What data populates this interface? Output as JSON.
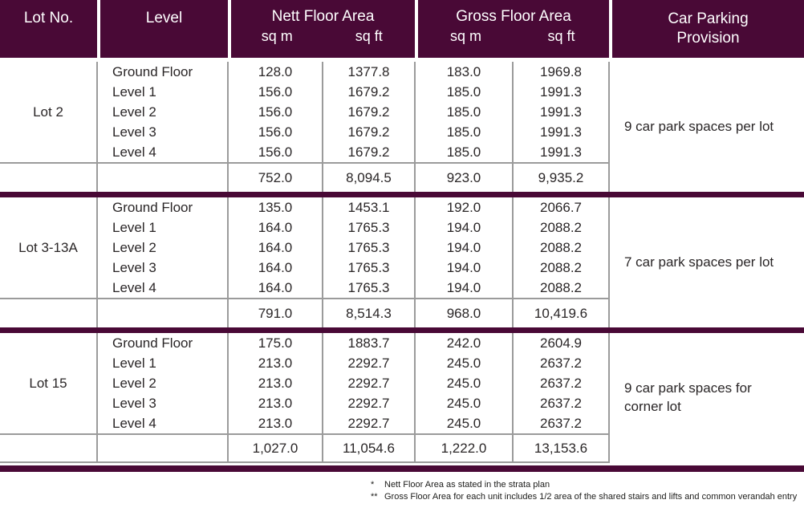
{
  "colors": {
    "header_bg": "#490936",
    "grid_line": "#9b9b9b",
    "text": "#2a2627"
  },
  "header": {
    "col_lot": "Lot No.",
    "col_level": "Level",
    "group_nett": "Nett Floor Area",
    "group_gross": "Gross Floor Area",
    "unit_sqm": "sq m",
    "unit_sqft": "sq ft",
    "col_parking_line1": "Car Parking",
    "col_parking_line2": "Provision"
  },
  "sections": [
    {
      "lot": "Lot 2",
      "parking": "9 car park spaces per lot",
      "rows": [
        {
          "level": "Ground Floor",
          "nett_sqm": "128.0",
          "nett_sqft": "1377.8",
          "gross_sqm": "183.0",
          "gross_sqft": "1969.8"
        },
        {
          "level": "Level 1",
          "nett_sqm": "156.0",
          "nett_sqft": "1679.2",
          "gross_sqm": "185.0",
          "gross_sqft": "1991.3"
        },
        {
          "level": "Level 2",
          "nett_sqm": "156.0",
          "nett_sqft": "1679.2",
          "gross_sqm": "185.0",
          "gross_sqft": "1991.3"
        },
        {
          "level": "Level 3",
          "nett_sqm": "156.0",
          "nett_sqft": "1679.2",
          "gross_sqm": "185.0",
          "gross_sqft": "1991.3"
        },
        {
          "level": "Level 4",
          "nett_sqm": "156.0",
          "nett_sqft": "1679.2",
          "gross_sqm": "185.0",
          "gross_sqft": "1991.3"
        }
      ],
      "totals": {
        "nett_sqm": "752.0",
        "nett_sqft": "8,094.5",
        "gross_sqm": "923.0",
        "gross_sqft": "9,935.2"
      }
    },
    {
      "lot": "Lot 3-13A",
      "parking": "7 car park spaces per lot",
      "rows": [
        {
          "level": "Ground Floor",
          "nett_sqm": "135.0",
          "nett_sqft": "1453.1",
          "gross_sqm": "192.0",
          "gross_sqft": "2066.7"
        },
        {
          "level": "Level 1",
          "nett_sqm": "164.0",
          "nett_sqft": "1765.3",
          "gross_sqm": "194.0",
          "gross_sqft": "2088.2"
        },
        {
          "level": "Level 2",
          "nett_sqm": "164.0",
          "nett_sqft": "1765.3",
          "gross_sqm": "194.0",
          "gross_sqft": "2088.2"
        },
        {
          "level": "Level 3",
          "nett_sqm": "164.0",
          "nett_sqft": "1765.3",
          "gross_sqm": "194.0",
          "gross_sqft": "2088.2"
        },
        {
          "level": "Level 4",
          "nett_sqm": "164.0",
          "nett_sqft": "1765.3",
          "gross_sqm": "194.0",
          "gross_sqft": "2088.2"
        }
      ],
      "totals": {
        "nett_sqm": "791.0",
        "nett_sqft": "8,514.3",
        "gross_sqm": "968.0",
        "gross_sqft": "10,419.6"
      }
    },
    {
      "lot": "Lot 15",
      "parking": "9 car park spaces for corner lot",
      "rows": [
        {
          "level": "Ground Floor",
          "nett_sqm": "175.0",
          "nett_sqft": "1883.7",
          "gross_sqm": "242.0",
          "gross_sqft": "2604.9"
        },
        {
          "level": "Level 1",
          "nett_sqm": "213.0",
          "nett_sqft": "2292.7",
          "gross_sqm": "245.0",
          "gross_sqft": "2637.2"
        },
        {
          "level": "Level 2",
          "nett_sqm": "213.0",
          "nett_sqft": "2292.7",
          "gross_sqm": "245.0",
          "gross_sqft": "2637.2"
        },
        {
          "level": "Level 3",
          "nett_sqm": "213.0",
          "nett_sqft": "2292.7",
          "gross_sqm": "245.0",
          "gross_sqft": "2637.2"
        },
        {
          "level": "Level 4",
          "nett_sqm": "213.0",
          "nett_sqft": "2292.7",
          "gross_sqm": "245.0",
          "gross_sqft": "2637.2"
        }
      ],
      "totals": {
        "nett_sqm": "1,027.0",
        "nett_sqft": "11,054.6",
        "gross_sqm": "1,222.0",
        "gross_sqft": "13,153.6"
      }
    }
  ],
  "footnotes": [
    {
      "marker": "*",
      "text": "Nett Floor Area as stated in the strata plan"
    },
    {
      "marker": "**",
      "text": "Gross Floor Area for each unit includes 1/2 area of the shared stairs and lifts and common verandah entry"
    }
  ]
}
